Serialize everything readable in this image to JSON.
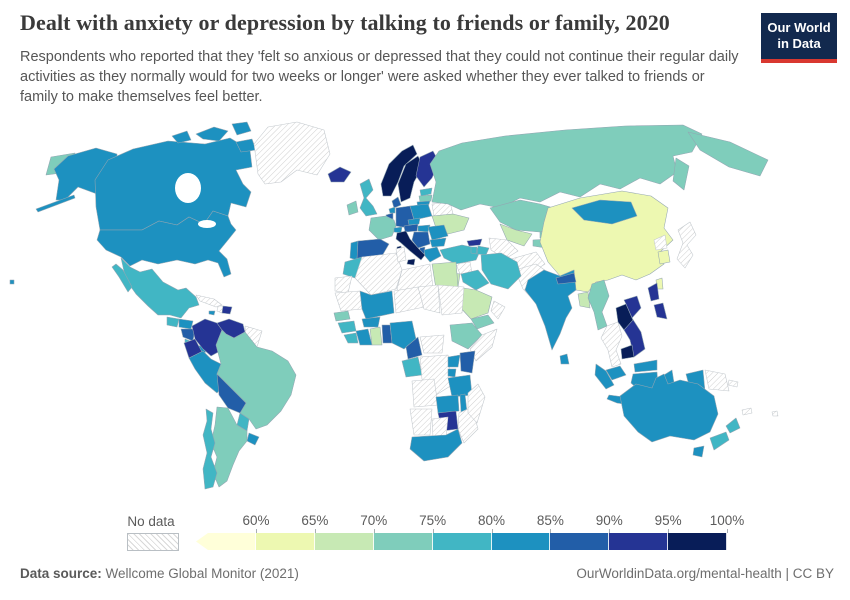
{
  "header": {
    "title": "Dealt with anxiety or depression by talking to friends or family, 2020",
    "subtitle": "Respondents who reported that they 'felt so anxious or depressed that they could not continue their regular daily activities as they normally would for two weeks or longer' were asked whether they ever talked to friends or family to make themselves feel better.",
    "logo": {
      "line1": "Our World",
      "line2": "in Data",
      "bg": "#12294e",
      "accent": "#d93830"
    }
  },
  "legend": {
    "no_data_label": "No data",
    "tick_labels": [
      "60%",
      "65%",
      "70%",
      "75%",
      "80%",
      "85%",
      "90%",
      "95%",
      "100%"
    ]
  },
  "map": {
    "palette": {
      "b1": "#ffffd9",
      "b2": "#edf8b1",
      "b3": "#c7e9b4",
      "b4": "#7fcdbb",
      "b5": "#41b6c4",
      "b6": "#1d91c0",
      "b7": "#225ea8",
      "b8": "#253494",
      "b9": "#081d58"
    },
    "countries": {
      "usa": "b6",
      "canada": "b6",
      "greenland": "no_data",
      "mexico": "b5",
      "guatemala": "b5",
      "honduras": "b6",
      "nicaragua": "b7",
      "costa_rica": "b5",
      "panama": "b6",
      "cuba": "no_data",
      "jamaica": "b6",
      "haiti": "no_data",
      "dominican_republic": "b8",
      "colombia": "b8",
      "venezuela": "b8",
      "guyanas": "no_data",
      "ecuador": "b8",
      "peru": "b6",
      "brazil": "b4",
      "bolivia": "b7",
      "paraguay": "b5",
      "uruguay": "b6",
      "argentina": "b4",
      "chile": "b5",
      "iceland": "b8",
      "ireland": "b4",
      "uk": "b5",
      "norway": "b9",
      "sweden": "b9",
      "finland": "b8",
      "estonia": "b5",
      "latvia": "b4",
      "lithuania": "b6",
      "denmark": "b7",
      "belarus": "no_data",
      "ukraine": "b3",
      "poland": "b6",
      "germany": "b7",
      "netherlands": "b6",
      "belgium": "b7",
      "france": "b4",
      "switzerland": "b6",
      "austria": "b7",
      "czechia": "b6",
      "hungary": "b6",
      "romania": "b6",
      "bulgaria": "b6",
      "balkans": "b7",
      "greece": "b6",
      "albania": "b7",
      "italy": "b9",
      "portugal": "b6",
      "spain": "b7",
      "russia": "b4",
      "kazakhstan": "b4",
      "uzbekistan": "b3",
      "turkmenistan": "no_data",
      "kyrgyzstan": "b4",
      "tajikistan": "b4",
      "afghanistan": "no_data",
      "pakistan": "no_data",
      "turkey": "b5",
      "georgia": "b8",
      "armenia": "b5",
      "azerbaijan": "b5",
      "syria": "no_data",
      "iraq": "b5",
      "iran": "b5",
      "israel_jordan": "b3",
      "saudi_arabia": "b3",
      "yemen": "b4",
      "oman": "no_data",
      "egypt": "b3",
      "morocco": "b5",
      "western_sahara": "no_data",
      "algeria": "no_data",
      "tunisia": "no_data",
      "libya": "no_data",
      "mauritania": "no_data",
      "mali": "b6",
      "niger": "no_data",
      "chad": "no_data",
      "sudan": "no_data",
      "senegal": "b4",
      "guinea": "b5",
      "sierra_leone": "b5",
      "ivory_coast": "b6",
      "burkina_faso": "b6",
      "ghana": "b3",
      "togo_benin": "b7",
      "nigeria": "b6",
      "cameroon": "b7",
      "car": "no_data",
      "ethiopia": "b4",
      "somalia": "no_data",
      "gabon_congo": "b5",
      "drc": "no_data",
      "uganda": "b6",
      "kenya": "b7",
      "rwanda_burundi": "b6",
      "tanzania": "b6",
      "angola": "no_data",
      "zambia": "b6",
      "malawi": "b6",
      "mozambique": "no_data",
      "zimbabwe": "b8",
      "namibia": "no_data",
      "botswana": "no_data",
      "south_africa": "b6",
      "madagascar": "no_data",
      "china": "b2",
      "mongolia": "b6",
      "north_korea": "no_data",
      "south_korea": "b2",
      "japan": "no_data",
      "taiwan": "b2",
      "india": "b6",
      "nepal": "b7",
      "bangladesh": "b3",
      "sri_lanka": "b6",
      "myanmar": "b4",
      "thailand": "no_data",
      "laos": "b9",
      "vietnam": "b8",
      "cambodia": "b9",
      "malaysia": "b6",
      "indonesia": "b6",
      "png": "no_data",
      "philippines": "b8",
      "australia": "b6",
      "new_zealand": "b5",
      "new_caledonia": "no_data",
      "solomon": "no_data",
      "fiji": "no_data"
    }
  },
  "chart_data": {
    "type": "choropleth_map",
    "title": "Dealt with anxiety or depression by talking to friends or family, 2020",
    "unit": "% of respondents",
    "color_scale": {
      "bins": [
        "<60%",
        "60-65%",
        "65-70%",
        "70-75%",
        "75-80%",
        "80-85%",
        "85-90%",
        "90-95%",
        "95-100%"
      ],
      "colors": [
        "#ffffd9",
        "#edf8b1",
        "#c7e9b4",
        "#7fcdbb",
        "#41b6c4",
        "#1d91c0",
        "#225ea8",
        "#253494",
        "#081d58"
      ],
      "open_ended_low": true
    },
    "entities": {
      "United States": "80-85%",
      "Canada": "80-85%",
      "Mexico": "75-80%",
      "Guatemala": "75-80%",
      "Honduras": "80-85%",
      "Nicaragua": "85-90%",
      "Costa Rica": "75-80%",
      "Panama": "80-85%",
      "Jamaica": "80-85%",
      "Dominican Republic": "90-95%",
      "Colombia": "90-95%",
      "Venezuela": "90-95%",
      "Ecuador": "90-95%",
      "Peru": "80-85%",
      "Bolivia": "85-90%",
      "Brazil": "70-75%",
      "Paraguay": "75-80%",
      "Uruguay": "80-85%",
      "Argentina": "70-75%",
      "Chile": "75-80%",
      "Iceland": "90-95%",
      "Ireland": "70-75%",
      "United Kingdom": "75-80%",
      "Norway": "95-100%",
      "Sweden": "95-100%",
      "Finland": "90-95%",
      "Denmark": "85-90%",
      "Estonia": "75-80%",
      "Latvia": "70-75%",
      "Lithuania": "80-85%",
      "Ukraine": "65-70%",
      "Poland": "80-85%",
      "Germany": "85-90%",
      "Netherlands": "80-85%",
      "Belgium": "85-90%",
      "France": "70-75%",
      "Switzerland": "80-85%",
      "Austria": "85-90%",
      "Czechia": "80-85%",
      "Hungary": "80-85%",
      "Romania": "80-85%",
      "Bulgaria": "80-85%",
      "Serbia": "85-90%",
      "Albania": "85-90%",
      "Greece": "80-85%",
      "Italy": "95-100%",
      "Portugal": "80-85%",
      "Spain": "85-90%",
      "Russia": "70-75%",
      "Kazakhstan": "70-75%",
      "Uzbekistan": "65-70%",
      "Kyrgyzstan": "70-75%",
      "Tajikistan": "70-75%",
      "Turkey": "75-80%",
      "Georgia": "90-95%",
      "Armenia": "75-80%",
      "Azerbaijan": "75-80%",
      "Iraq": "75-80%",
      "Iran": "75-80%",
      "Israel": "65-70%",
      "Jordan": "65-70%",
      "Saudi Arabia": "65-70%",
      "Yemen": "70-75%",
      "Egypt": "65-70%",
      "India": "80-85%",
      "Nepal": "85-90%",
      "Bangladesh": "65-70%",
      "Sri Lanka": "80-85%",
      "Myanmar": "70-75%",
      "China": "60-65%",
      "Mongolia": "80-85%",
      "South Korea": "60-65%",
      "Taiwan": "60-65%",
      "Laos": "95-100%",
      "Vietnam": "90-95%",
      "Cambodia": "95-100%",
      "Malaysia": "80-85%",
      "Indonesia": "80-85%",
      "Philippines": "90-95%",
      "Australia": "80-85%",
      "New Zealand": "75-80%",
      "Morocco": "75-80%",
      "Mali": "80-85%",
      "Senegal": "70-75%",
      "Guinea": "75-80%",
      "Sierra Leone": "75-80%",
      "Ivory Coast": "80-85%",
      "Burkina Faso": "80-85%",
      "Ghana": "65-70%",
      "Benin": "85-90%",
      "Nigeria": "80-85%",
      "Cameroon": "85-90%",
      "Ethiopia": "70-75%",
      "Gabon": "75-80%",
      "Congo": "75-80%",
      "Uganda": "80-85%",
      "Kenya": "85-90%",
      "Rwanda": "80-85%",
      "Tanzania": "80-85%",
      "Zambia": "80-85%",
      "Malawi": "80-85%",
      "Zimbabwe": "90-95%",
      "South Africa": "80-85%"
    },
    "no_data": [
      "Greenland",
      "Cuba",
      "Haiti",
      "Guyana",
      "Suriname",
      "French Guiana",
      "Belarus",
      "Algeria",
      "Tunisia",
      "Libya",
      "Western Sahara",
      "Mauritania",
      "Niger",
      "Chad",
      "Sudan",
      "Somalia",
      "Central African Republic",
      "Democratic Republic of Congo",
      "Angola",
      "Namibia",
      "Botswana",
      "Mozambique",
      "Madagascar",
      "Syria",
      "Oman",
      "Turkmenistan",
      "Afghanistan",
      "Pakistan",
      "North Korea",
      "Japan",
      "Thailand",
      "Papua New Guinea",
      "New Caledonia",
      "Solomon Islands",
      "Fiji"
    ],
    "legend_position": "bottom",
    "no_data_label": "No data"
  },
  "footer": {
    "source_label": "Data source:",
    "source_value": " Wellcome Global Monitor (2021)",
    "credit": "OurWorldinData.org/mental-health | CC BY"
  }
}
